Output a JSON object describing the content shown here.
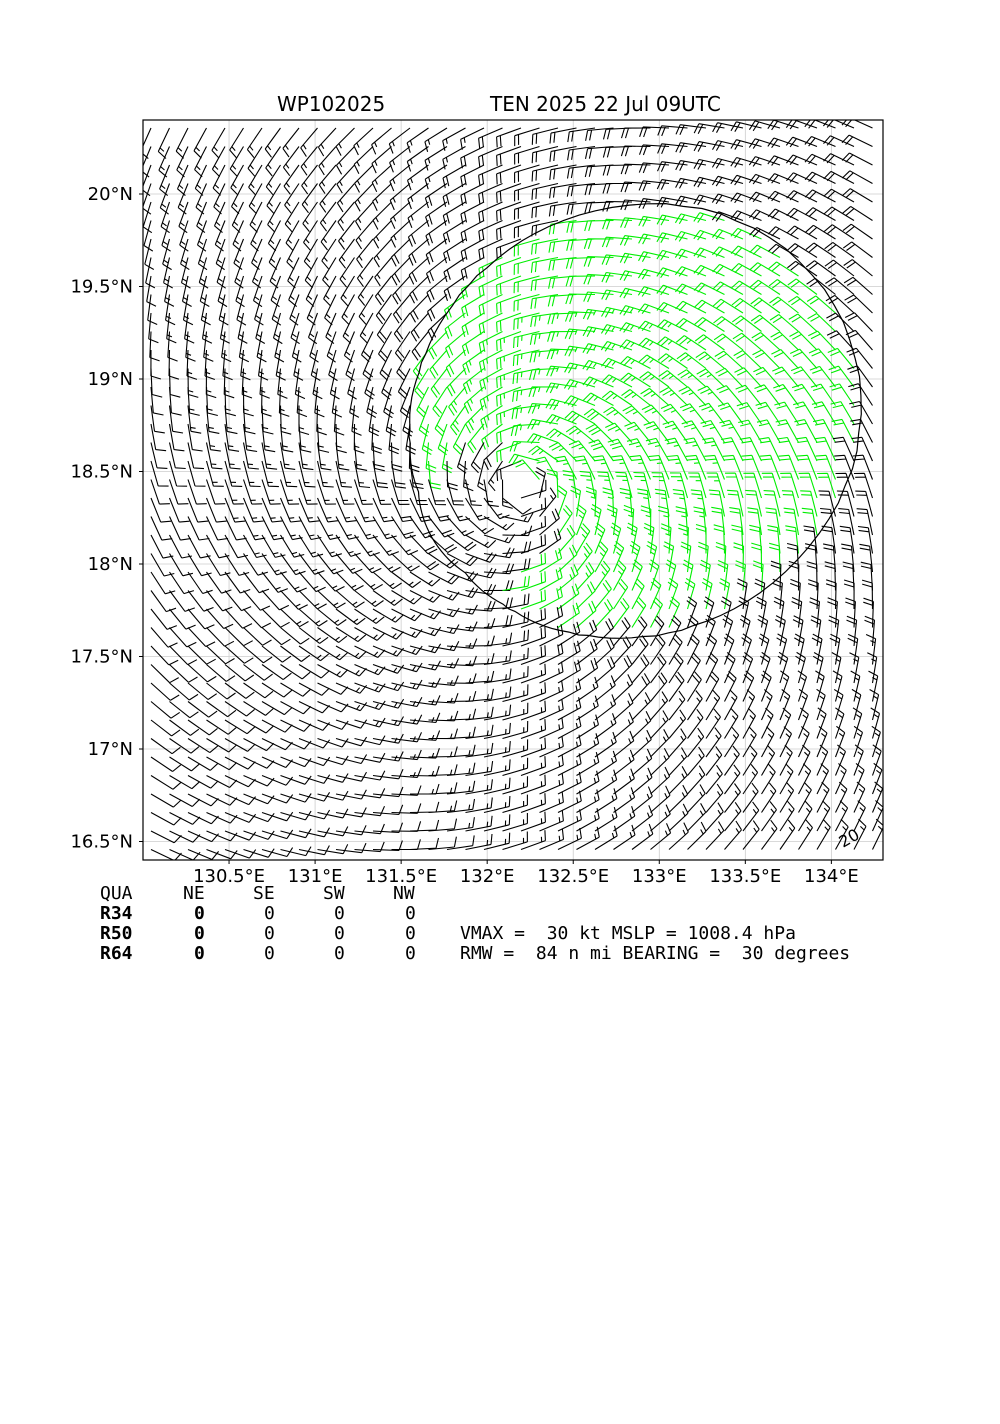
{
  "header": {
    "storm_id": "WP102025",
    "storm_info": "TEN 2025 22 Jul 09UTC"
  },
  "chart_data": {
    "type": "wind_barbs",
    "lon_range": [
      130.0,
      134.3
    ],
    "lat_range": [
      16.4,
      20.4
    ],
    "center": {
      "lon": 132.2,
      "lat": 18.42
    },
    "x_ticks": [
      130.5,
      131.0,
      131.5,
      132.0,
      132.5,
      133.0,
      133.5,
      134.0
    ],
    "x_tick_labels": [
      "130.5°E",
      "131°E",
      "131.5°E",
      "132°E",
      "132.5°E",
      "133°E",
      "133.5°E",
      "134°E"
    ],
    "y_ticks": [
      16.5,
      17.0,
      17.5,
      18.0,
      18.5,
      19.0,
      19.5,
      20.0
    ],
    "y_tick_labels": [
      "16.5°N",
      "17°N",
      "17.5°N",
      "18°N",
      "18.5°N",
      "19°N",
      "19.5°N",
      "20°N"
    ],
    "grid": true,
    "contour_label": "20",
    "contour_level_kt": 20,
    "colors": {
      "below_contour": "#000000",
      "above_contour": "#00ee00",
      "grid": "#cccccc"
    }
  },
  "table": {
    "headers": [
      "QUA",
      "NE",
      "SE",
      "SW",
      "NW"
    ],
    "rows": [
      {
        "label": "R34",
        "values": [
          "0",
          "0",
          "0",
          "0"
        ]
      },
      {
        "label": "R50",
        "values": [
          "0",
          "0",
          "0",
          "0"
        ]
      },
      {
        "label": "R64",
        "values": [
          "0",
          "0",
          "0",
          "0"
        ]
      }
    ],
    "vmax_line": "VMAX =  30 kt MSLP = 1008.4 hPa",
    "rmw_line": "RMW =  84 n mi BEARING =  30 degrees"
  }
}
